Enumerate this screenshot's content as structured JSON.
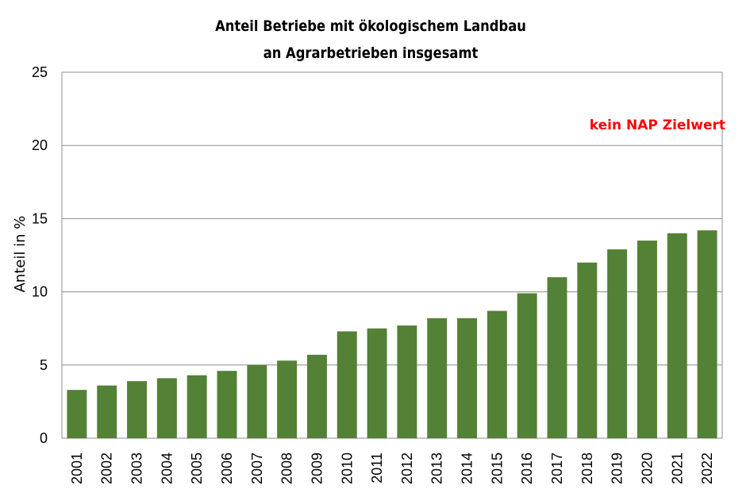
{
  "chart_data": {
    "type": "bar",
    "title_line1": "Anteil Betriebe mit ökologischem Landbau",
    "title_line2": "an  Agrarbetrieben insgesamt",
    "xlabel": "",
    "ylabel": "Anteil in %",
    "ylim": [
      0,
      25
    ],
    "yticks": [
      0,
      5,
      10,
      15,
      20,
      25
    ],
    "grid": true,
    "annotation": "kein NAP Zielwert",
    "bar_color": "#538135",
    "annotation_color": "#ff0000",
    "categories": [
      "2001",
      "2002",
      "2003",
      "2004",
      "2005",
      "2006",
      "2007",
      "2008",
      "2009",
      "2010",
      "2011",
      "2012",
      "2013",
      "2014",
      "2015",
      "2016",
      "2017",
      "2018",
      "2019",
      "2020",
      "2021",
      "2022"
    ],
    "values": [
      3.3,
      3.6,
      3.9,
      4.1,
      4.3,
      4.6,
      5.0,
      5.3,
      5.7,
      7.3,
      7.5,
      7.7,
      8.2,
      8.2,
      8.7,
      9.9,
      11.0,
      12.0,
      12.9,
      13.5,
      14.0,
      14.2
    ]
  }
}
